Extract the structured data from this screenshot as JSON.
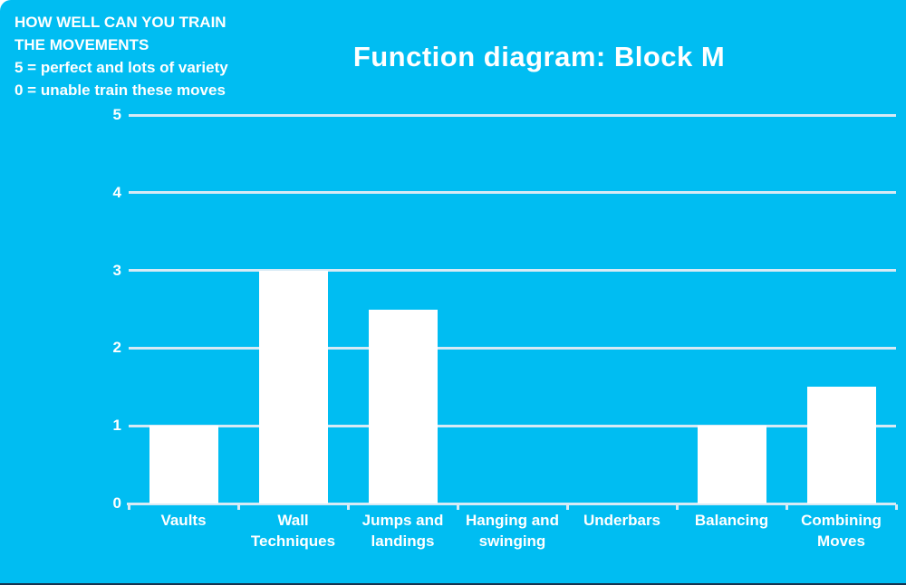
{
  "annotation": {
    "lines": [
      "HOW WELL CAN YOU TRAIN",
      "THE MOVEMENTS",
      "5 = perfect and lots of variety",
      "0 = unable train these moves"
    ]
  },
  "chart_data": {
    "type": "bar",
    "title": "Function diagram: Block M",
    "categories": [
      "Vaults",
      "Wall Techniques",
      "Jumps and landings",
      "Hanging and swinging",
      "Underbars",
      "Balancing",
      "Combining Moves"
    ],
    "tick_label_lines": [
      [
        "Vaults"
      ],
      [
        "Wall",
        "Techniques"
      ],
      [
        "Jumps and",
        "landings"
      ],
      [
        "Hanging and",
        "swinging"
      ],
      [
        "Underbars"
      ],
      [
        "Balancing"
      ],
      [
        "Combining",
        "Moves"
      ]
    ],
    "values": [
      1,
      3,
      2.5,
      0,
      0,
      1,
      1.5
    ],
    "y_ticks": [
      0,
      1,
      2,
      3,
      4,
      5
    ],
    "ylim": [
      0,
      5
    ],
    "xlabel": "",
    "ylabel": "",
    "grid": true,
    "legend_position": "none"
  },
  "colors": {
    "background": "#00BDF2",
    "bar": "#FFFFFF",
    "gridline": "#D7EAF5",
    "axis": "#D7EAF5",
    "text": "#FFFFFF",
    "bottom_edge": "#16334F"
  }
}
